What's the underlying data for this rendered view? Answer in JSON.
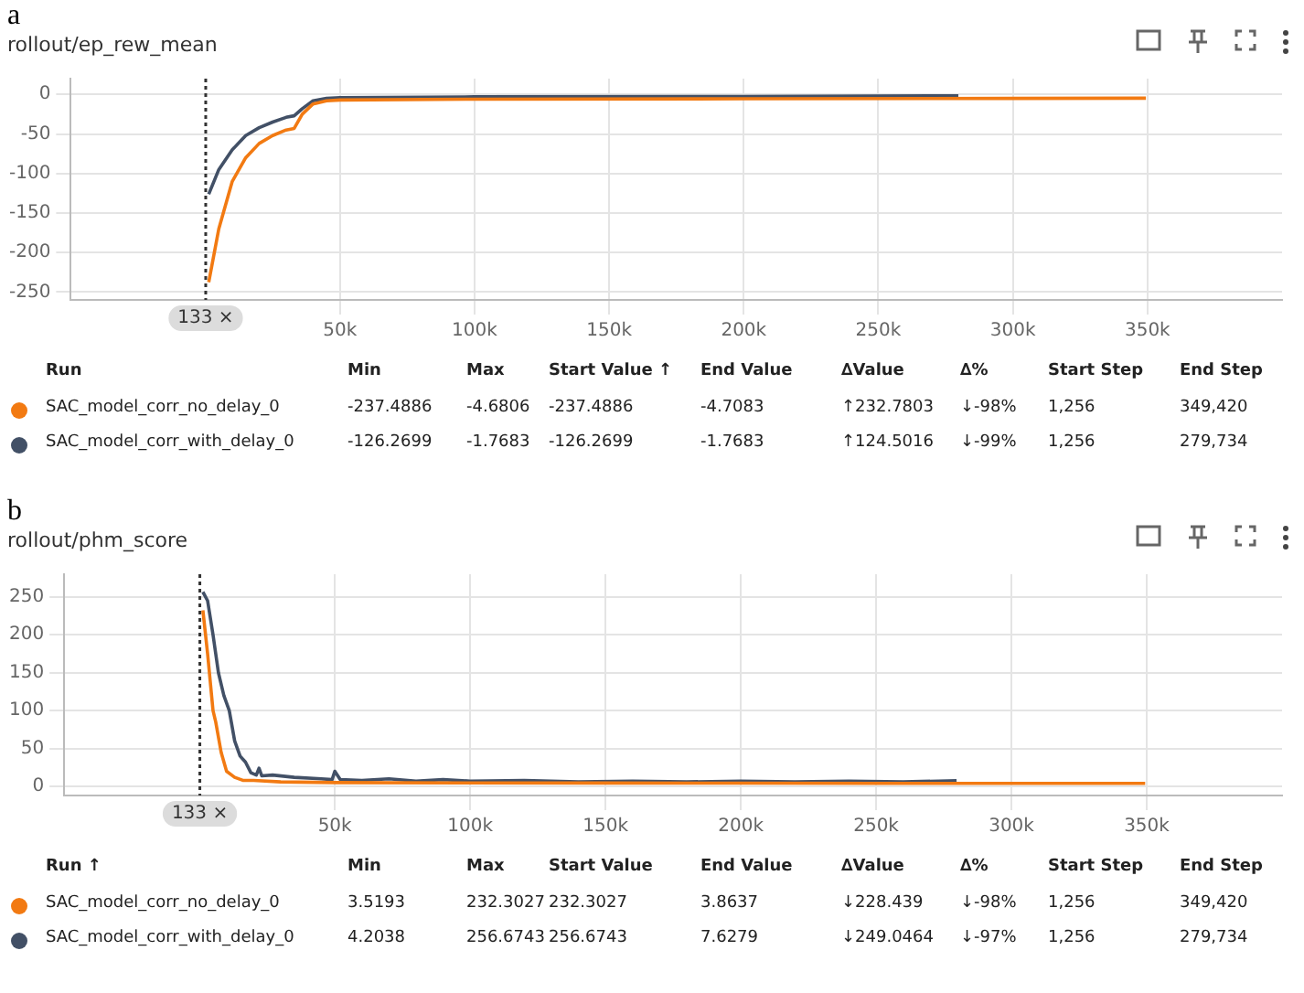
{
  "chart_data": [
    {
      "type": "line",
      "title": "rollout/ep_rew_mean",
      "legend": "bottom",
      "grid": true,
      "marker": "none",
      "line_style": "solid",
      "xlim": [
        -50000,
        400000
      ],
      "xticks": [
        {
          "value": 50000,
          "label": "50k"
        },
        {
          "value": 100000,
          "label": "100k"
        },
        {
          "value": 150000,
          "label": "150k"
        },
        {
          "value": 200000,
          "label": "200k"
        },
        {
          "value": 250000,
          "label": "250k"
        },
        {
          "value": 300000,
          "label": "300k"
        },
        {
          "value": 350000,
          "label": "350k"
        }
      ],
      "ylim": [
        -260,
        20
      ],
      "yticks": [
        -250,
        -200,
        -150,
        -100,
        -50,
        0
      ],
      "ref_lines": [
        {
          "axis": "x",
          "value": 133,
          "label": "133 ×",
          "line_style": "dotted",
          "color": "#333333"
        }
      ],
      "series": [
        {
          "name": "SAC_model_corr_no_delay_0",
          "color": "#f27a12",
          "x": [
            1256,
            5000,
            10000,
            15000,
            20000,
            25000,
            30000,
            33000,
            36000,
            40000,
            45000,
            50000,
            100000,
            200000,
            300000,
            349420
          ],
          "values": [
            -237.5,
            -170,
            -110,
            -80,
            -62,
            -52,
            -45,
            -43,
            -25,
            -12,
            -8,
            -7,
            -6,
            -5.5,
            -5,
            -4.7
          ]
        },
        {
          "name": "SAC_model_corr_with_delay_0",
          "color": "#425066",
          "x": [
            1256,
            5000,
            10000,
            15000,
            20000,
            25000,
            30000,
            33000,
            36000,
            40000,
            45000,
            50000,
            100000,
            200000,
            279734
          ],
          "values": [
            -126.3,
            -95,
            -70,
            -52,
            -42,
            -35,
            -29,
            -27,
            -18,
            -8,
            -5,
            -4,
            -3,
            -2.5,
            -1.8
          ]
        }
      ],
      "annotations": [
        "a",
        "Run",
        "Min",
        "Max",
        "Start Value ↑",
        "End Value",
        "∆Value",
        "∆%",
        "Start Step",
        "End Step",
        "-237.4886",
        "-4.6806",
        "-237.4886",
        "-4.7083",
        "↑232.7803",
        "↓-98%",
        "1,256",
        "349,420",
        "-126.2699",
        "-1.7683",
        "-126.2699",
        "-1.7683",
        "↑124.5016",
        "↓-99%",
        "1,256",
        "279,734"
      ]
    },
    {
      "type": "line",
      "title": "rollout/phm_score",
      "legend": "bottom",
      "grid": true,
      "marker": "none",
      "line_style": "solid",
      "xlim": [
        -50000,
        400000
      ],
      "xticks": [
        {
          "value": 50000,
          "label": "50k"
        },
        {
          "value": 100000,
          "label": "100k"
        },
        {
          "value": 150000,
          "label": "150k"
        },
        {
          "value": 200000,
          "label": "200k"
        },
        {
          "value": 250000,
          "label": "250k"
        },
        {
          "value": 300000,
          "label": "300k"
        },
        {
          "value": 350000,
          "label": "350k"
        }
      ],
      "ylim": [
        -12,
        280
      ],
      "yticks": [
        0,
        50,
        100,
        150,
        200,
        250
      ],
      "ref_lines": [
        {
          "axis": "x",
          "value": 133,
          "label": "133 ×",
          "line_style": "dotted",
          "color": "#333333"
        }
      ],
      "series": [
        {
          "name": "SAC_model_corr_no_delay_0",
          "color": "#f27a12",
          "x": [
            1256,
            3000,
            5000,
            6000,
            8000,
            10000,
            13000,
            16000,
            20000,
            30000,
            50000,
            100000,
            150000,
            200000,
            250000,
            300000,
            349420
          ],
          "values": [
            232.3,
            175,
            100,
            85,
            45,
            20,
            12,
            8,
            8,
            6,
            5,
            4.5,
            4.5,
            4.2,
            4,
            4,
            3.9
          ]
        },
        {
          "name": "SAC_model_corr_with_delay_0",
          "color": "#425066",
          "x": [
            1256,
            3000,
            5000,
            7000,
            9000,
            11000,
            13000,
            15000,
            17000,
            19000,
            21000,
            22000,
            23000,
            27000,
            35000,
            45000,
            49000,
            50000,
            52000,
            60000,
            70000,
            80000,
            90000,
            100000,
            120000,
            140000,
            160000,
            180000,
            200000,
            220000,
            240000,
            260000,
            279734
          ],
          "values": [
            256.7,
            245,
            200,
            150,
            120,
            100,
            60,
            40,
            32,
            18,
            15,
            24,
            14,
            15,
            12,
            10,
            9,
            20,
            9,
            8,
            10,
            7,
            9,
            7,
            8,
            6,
            7,
            6,
            7,
            6,
            7,
            6,
            7.6
          ]
        }
      ],
      "annotations": [
        "b",
        "Run ↑",
        "Min",
        "Max",
        "Start Value",
        "End Value",
        "∆Value",
        "∆%",
        "Start Step",
        "End Step",
        "3.5193",
        "232.3027",
        "232.3027",
        "3.8637",
        "↓228.439",
        "↓-98%",
        "1,256",
        "349,420",
        "4.2038",
        "256.6743",
        "256.6743",
        "7.6279",
        "↓249.0464",
        "↓-97%",
        "1,256",
        "279,734"
      ]
    }
  ]
}
